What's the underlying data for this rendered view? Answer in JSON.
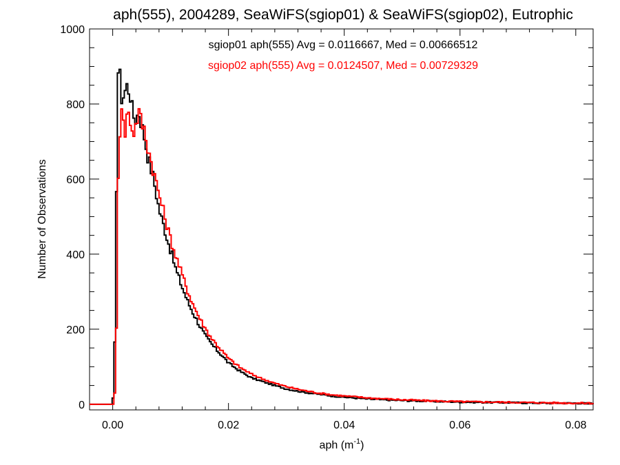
{
  "chart_data": {
    "type": "line",
    "title": "aph(555), 2004289, SeaWiFS(sgiop01) & SeaWiFS(sgiop02), Eutrophic",
    "xlabel": {
      "base": "aph (m",
      "sup": "-1",
      "close": ")"
    },
    "ylabel": "Number of Observations",
    "xlim": [
      -0.004,
      0.083
    ],
    "ylim": [
      -15,
      1000
    ],
    "x_ticks": [
      0.0,
      0.02,
      0.04,
      0.06,
      0.08
    ],
    "x_tick_labels": [
      "0.00",
      "0.02",
      "0.04",
      "0.06",
      "0.08"
    ],
    "x_minor_step": 0.004,
    "y_ticks": [
      0,
      200,
      400,
      600,
      800,
      1000
    ],
    "y_tick_labels": [
      "0",
      "200",
      "400",
      "600",
      "800",
      "1000"
    ],
    "y_minor_step": 50,
    "grid": false,
    "legend_position": "top-center",
    "series": [
      {
        "name": "sgiop01",
        "color": "#000000",
        "legend": "sgiop01 aph(555) Avg = 0.0116667, Med = 0.00666512",
        "x": [
          -0.004,
          0.0,
          0.0003,
          0.0006,
          0.0009,
          0.0012,
          0.0016,
          0.002,
          0.0025,
          0.003,
          0.0035,
          0.004,
          0.0045,
          0.005,
          0.0055,
          0.006,
          0.007,
          0.008,
          0.009,
          0.01,
          0.011,
          0.012,
          0.013,
          0.014,
          0.015,
          0.016,
          0.017,
          0.018,
          0.019,
          0.02,
          0.022,
          0.024,
          0.026,
          0.028,
          0.03,
          0.032,
          0.034,
          0.036,
          0.038,
          0.04,
          0.045,
          0.05,
          0.055,
          0.06,
          0.065,
          0.07,
          0.075,
          0.08,
          0.083
        ],
        "y": [
          0,
          0,
          90,
          520,
          890,
          880,
          810,
          830,
          850,
          830,
          770,
          760,
          780,
          745,
          710,
          665,
          605,
          520,
          465,
          410,
          355,
          312,
          272,
          240,
          210,
          182,
          162,
          144,
          128,
          110,
          88,
          70,
          60,
          50,
          41,
          35,
          30,
          26,
          22,
          19,
          13,
          10,
          8,
          6,
          5,
          4,
          3,
          3,
          2
        ]
      },
      {
        "name": "sgiop02",
        "color": "#ff0000",
        "legend": "sgiop02 aph(555) Avg = 0.0124507, Med = 0.00729329",
        "x": [
          -0.004,
          0.0,
          0.0003,
          0.0006,
          0.0009,
          0.0012,
          0.0016,
          0.002,
          0.0025,
          0.003,
          0.0035,
          0.004,
          0.0045,
          0.005,
          0.0055,
          0.006,
          0.007,
          0.008,
          0.009,
          0.01,
          0.011,
          0.012,
          0.013,
          0.014,
          0.015,
          0.016,
          0.017,
          0.018,
          0.019,
          0.02,
          0.022,
          0.024,
          0.026,
          0.028,
          0.03,
          0.032,
          0.034,
          0.036,
          0.038,
          0.04,
          0.045,
          0.05,
          0.055,
          0.06,
          0.065,
          0.07,
          0.075,
          0.08,
          0.083
        ],
        "y": [
          0,
          0,
          10,
          120,
          600,
          710,
          820,
          700,
          780,
          760,
          720,
          745,
          780,
          750,
          730,
          690,
          625,
          560,
          500,
          440,
          390,
          345,
          300,
          262,
          230,
          202,
          178,
          158,
          140,
          122,
          98,
          80,
          67,
          56,
          47,
          40,
          34,
          29,
          25,
          22,
          16,
          12,
          9,
          7,
          6,
          5,
          4,
          3,
          3
        ]
      }
    ]
  }
}
